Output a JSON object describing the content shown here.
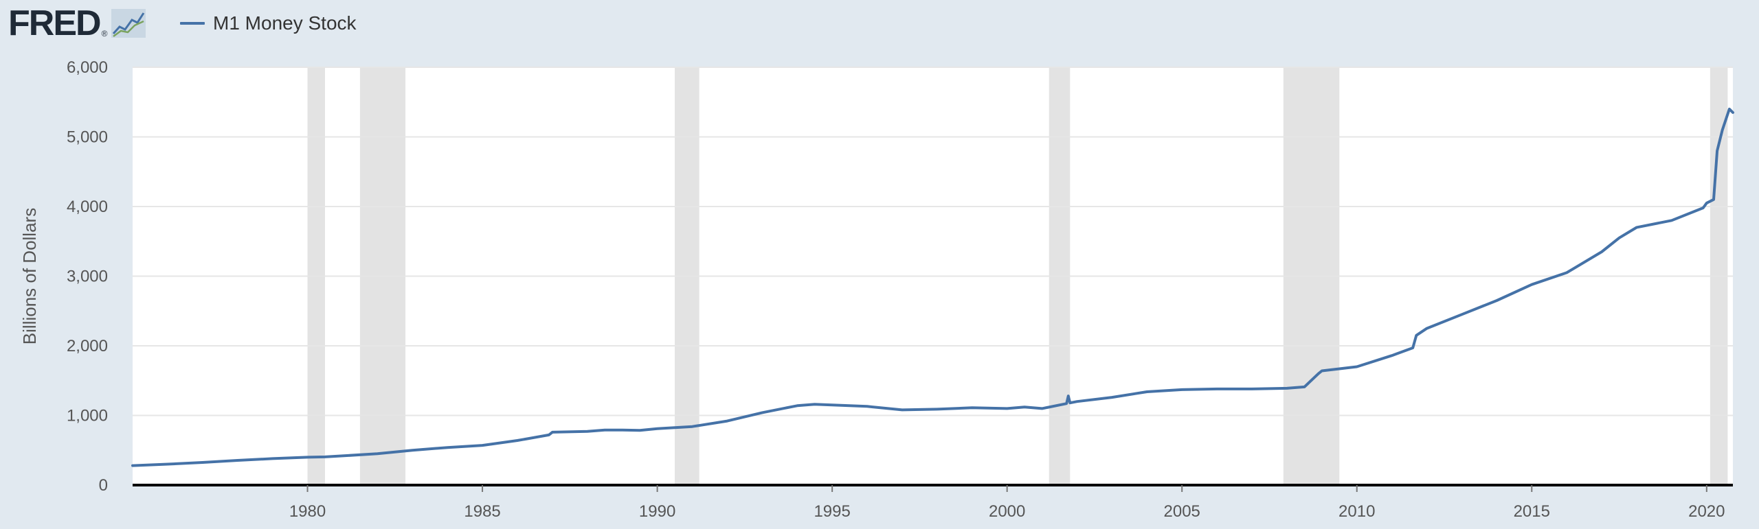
{
  "header": {
    "logo_text": "FRED",
    "logo_reg": "®",
    "logo_icon": "chart-line-icon"
  },
  "colors": {
    "background": "#e1e9f0",
    "plot_bg": "#ffffff",
    "series": "#4572a7",
    "recession": "#e3e3e3",
    "gridline": "#e6e6e6",
    "axis": "#000000"
  },
  "chart_data": {
    "type": "line",
    "title": "",
    "xlabel": "",
    "ylabel": "Billions of Dollars",
    "xlim": [
      1975.0,
      2020.75
    ],
    "ylim": [
      0,
      6000
    ],
    "y_ticks": [
      0,
      1000,
      2000,
      3000,
      4000,
      5000,
      6000
    ],
    "y_tick_labels": [
      "0",
      "1,000",
      "2,000",
      "3,000",
      "4,000",
      "5,000",
      "6,000"
    ],
    "x_ticks": [
      1980,
      1985,
      1990,
      1995,
      2000,
      2005,
      2010,
      2015,
      2020
    ],
    "x_tick_labels": [
      "1980",
      "1985",
      "1990",
      "1995",
      "2000",
      "2005",
      "2010",
      "2015",
      "2020"
    ],
    "grid": "horizontal",
    "legend": "top-left",
    "recessions": [
      [
        1980.0,
        1980.5
      ],
      [
        1981.5,
        1982.8
      ],
      [
        1990.5,
        1991.2
      ],
      [
        2001.2,
        2001.8
      ],
      [
        2007.9,
        2009.5
      ],
      [
        2020.1,
        2020.6
      ]
    ],
    "series": [
      {
        "name": "M1 Money Stock",
        "x": [
          1975.0,
          1976.0,
          1977.0,
          1978.0,
          1979.0,
          1980.0,
          1980.5,
          1981.0,
          1982.0,
          1983.0,
          1984.0,
          1985.0,
          1986.0,
          1986.9,
          1987.0,
          1988.0,
          1988.5,
          1989.0,
          1989.5,
          1990.0,
          1991.0,
          1992.0,
          1993.0,
          1994.0,
          1994.5,
          1995.0,
          1996.0,
          1997.0,
          1998.0,
          1999.0,
          2000.0,
          2000.5,
          2001.0,
          2001.7,
          2001.75,
          2001.8,
          2002.0,
          2003.0,
          2004.0,
          2005.0,
          2006.0,
          2007.0,
          2008.0,
          2008.5,
          2008.9,
          2009.0,
          2010.0,
          2011.0,
          2011.6,
          2011.7,
          2012.0,
          2013.0,
          2014.0,
          2015.0,
          2016.0,
          2017.0,
          2017.5,
          2018.0,
          2019.0,
          2019.9,
          2020.0,
          2020.2,
          2020.3,
          2020.45,
          2020.55,
          2020.65,
          2020.75
        ],
        "values": [
          280,
          300,
          325,
          355,
          380,
          400,
          405,
          420,
          450,
          500,
          540,
          570,
          640,
          720,
          760,
          770,
          790,
          790,
          785,
          810,
          840,
          920,
          1040,
          1140,
          1160,
          1150,
          1130,
          1080,
          1090,
          1110,
          1100,
          1120,
          1100,
          1170,
          1280,
          1180,
          1200,
          1260,
          1340,
          1370,
          1380,
          1380,
          1390,
          1410,
          1600,
          1640,
          1700,
          1860,
          1970,
          2150,
          2250,
          2450,
          2650,
          2880,
          3050,
          3350,
          3550,
          3700,
          3800,
          3980,
          4050,
          4100,
          4800,
          5100,
          5250,
          5400,
          5350
        ]
      }
    ]
  }
}
